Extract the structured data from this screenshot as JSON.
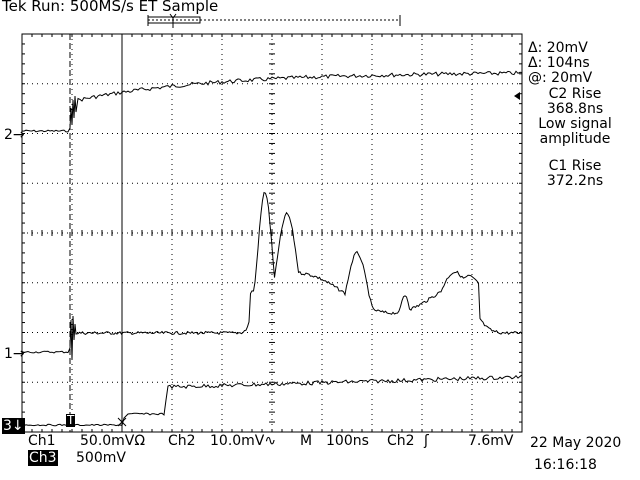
{
  "header": {
    "title": "Tek Run: 500MS/s ET Sample"
  },
  "cursor_readout": {
    "delta_v": "Δ: 20mV",
    "delta_t": "Δ: 104ns",
    "at_v": "@: 20mV"
  },
  "measurements": {
    "c2_label": "C2 Rise",
    "c2_value": "368.8ns",
    "c2_note_1": "Low signal",
    "c2_note_2": "amplitude",
    "c1_label": "C1 Rise",
    "c1_value": "372.2ns"
  },
  "channel_markers": {
    "ch2": "2→",
    "ch1": "1→",
    "ch3": "3↓",
    "trigger": "T"
  },
  "bottom_bar": {
    "ch1_label": "Ch1",
    "ch1_scale": "50.0mVΩ",
    "ch2_label": "Ch2",
    "ch2_scale": "10.0mV∿",
    "timebase_label": "M",
    "timebase": "100ns",
    "trig_source": "Ch2",
    "trig_slope": "ʃ",
    "trig_level": "7.6mV",
    "ch3_label": "Ch3",
    "ch3_scale": "500mV",
    "date": "22 May 2020",
    "time": "16:16:18"
  },
  "colors": {
    "trace": "#000000",
    "background": "#ffffff",
    "grid": "#000000"
  }
}
